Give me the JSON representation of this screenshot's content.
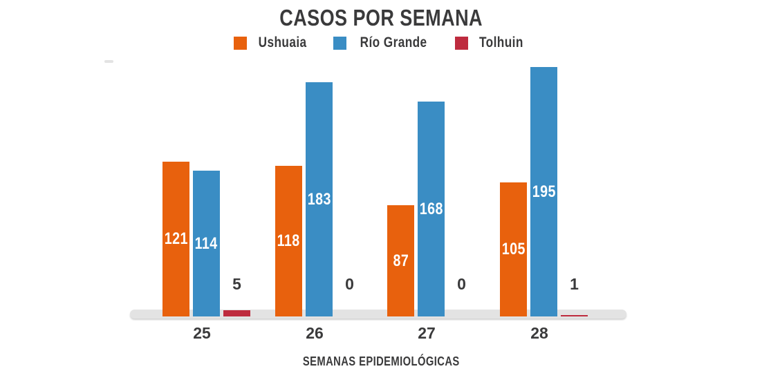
{
  "chart_data": {
    "type": "bar",
    "title": "CASOS POR SEMANA",
    "xlabel": "SEMANAS EPIDEMIOLÓGICAS",
    "ylabel": "",
    "categories": [
      "25",
      "26",
      "27",
      "28"
    ],
    "series": [
      {
        "name": "Ushuaia",
        "color": "#e8610d",
        "values": [
          121,
          118,
          87,
          105
        ]
      },
      {
        "name": "Río Grande",
        "color": "#3a8dc4",
        "values": [
          114,
          183,
          168,
          195
        ]
      },
      {
        "name": "Tolhuin",
        "color": "#be2b3e",
        "values": [
          5,
          0,
          0,
          1
        ]
      }
    ],
    "ylim": [
      0,
      200
    ],
    "grid": false,
    "legend_position": "top",
    "value_labels": true
  },
  "colors": {
    "ushuaia": "#e8610d",
    "rio_grande": "#3a8dc4",
    "tolhuin": "#be2b3e",
    "text": "#3a3a3b",
    "value_label": "#ffffff",
    "baseline": "#e3e3e3",
    "background": "#ffffff"
  }
}
